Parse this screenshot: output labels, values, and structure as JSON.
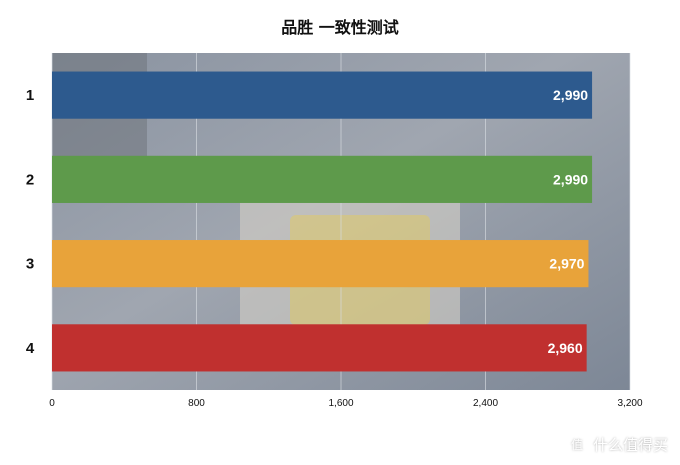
{
  "chart_data": {
    "type": "bar",
    "orientation": "horizontal",
    "title": "品胜 一致性测试",
    "categories": [
      "1",
      "2",
      "3",
      "4"
    ],
    "values": [
      2990,
      2990,
      2970,
      2960
    ],
    "value_labels": [
      "2,990",
      "2,990",
      "2,970",
      "2,960"
    ],
    "xlim": [
      0,
      3200
    ],
    "xticks": [
      0,
      800,
      1600,
      2400,
      3200
    ],
    "xtick_labels": [
      "0",
      "800",
      "1,600",
      "2,400",
      "3,200"
    ],
    "bar_colors": [
      "#2d5a8e",
      "#5e9a4b",
      "#e8a33a",
      "#c0302f"
    ],
    "grid": true,
    "legend": "none"
  },
  "watermark": {
    "icon": "zhi-icon",
    "icon_glyph": "值",
    "text": "什么值得买"
  }
}
